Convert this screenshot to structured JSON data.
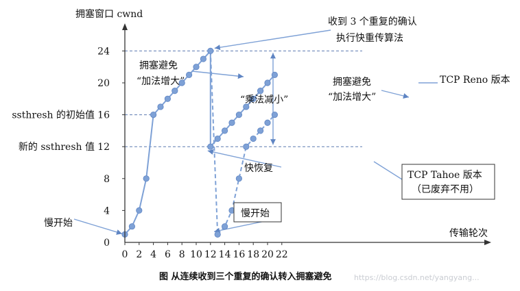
{
  "chart_data": {
    "type": "line",
    "title": "图 从连续收到三个重复的确认转入拥塞避免",
    "ylabel": "拥塞窗口 cwnd",
    "xlabel": "传输轮次",
    "xlim": [
      0,
      22
    ],
    "ylim": [
      0,
      24
    ],
    "xticks": [
      0,
      2,
      4,
      6,
      8,
      10,
      12,
      14,
      16,
      18,
      20,
      22
    ],
    "yticks": [
      0,
      4,
      8,
      12,
      16,
      20,
      24
    ],
    "xtick_labels": [
      "0",
      "2",
      "4",
      "6",
      "8",
      "10",
      "12",
      "14",
      "16",
      "18",
      "20",
      "22"
    ],
    "ytick_labels": [
      "0",
      "4",
      "8",
      "12",
      "16",
      "20",
      "24"
    ],
    "ytick_special": [
      {
        "value": 16,
        "label": "ssthresh 的初始值"
      },
      {
        "value": 12,
        "label": "新的 ssthresh 值"
      }
    ],
    "series": [
      {
        "name": "",
        "style": "solid",
        "x": [
          0,
          1,
          2,
          3,
          4,
          5,
          6,
          7,
          8,
          9,
          10,
          11,
          12
        ],
        "y": [
          1,
          2,
          4,
          8,
          16,
          17,
          18,
          19,
          20,
          21,
          22,
          23,
          24
        ]
      },
      {
        "name": "TCP Reno 版本",
        "style": "solid",
        "x": [
          12,
          13,
          14,
          15,
          16,
          17,
          18,
          19,
          20,
          21
        ],
        "y": [
          12,
          13,
          14,
          15,
          16,
          17,
          18,
          19,
          20,
          21
        ]
      },
      {
        "name": "TCP Tahoe 版本",
        "style": "dashed",
        "x": [
          13,
          14,
          15,
          16,
          17,
          18,
          19,
          20,
          21
        ],
        "y": [
          1,
          2,
          4,
          8,
          12,
          13,
          14,
          15,
          16
        ]
      }
    ],
    "connectors": [
      {
        "style": "solid",
        "from": [
          12,
          24
        ],
        "to": [
          12,
          12
        ]
      },
      {
        "style": "dashed",
        "from": [
          12,
          24
        ],
        "to": [
          13,
          1
        ]
      }
    ],
    "annotations": {
      "fast_retransmit": [
        "收到 3 个重复的确认",
        "执行快重传算法"
      ],
      "ca1": [
        "拥塞避免",
        "“加法增大”"
      ],
      "ca2": [
        "拥塞避免",
        "“加法增大”"
      ],
      "md": "“乘法减小”",
      "fast_recovery": "快恢复",
      "slow_start_1": "慢开始",
      "slow_start_2": "慢开始",
      "reno": "TCP Reno 版本",
      "tahoe": [
        "TCP Tahoe 版本",
        "（已废弃不用）"
      ]
    },
    "watermark": "https://blog.csdn.net/yangyang..."
  }
}
